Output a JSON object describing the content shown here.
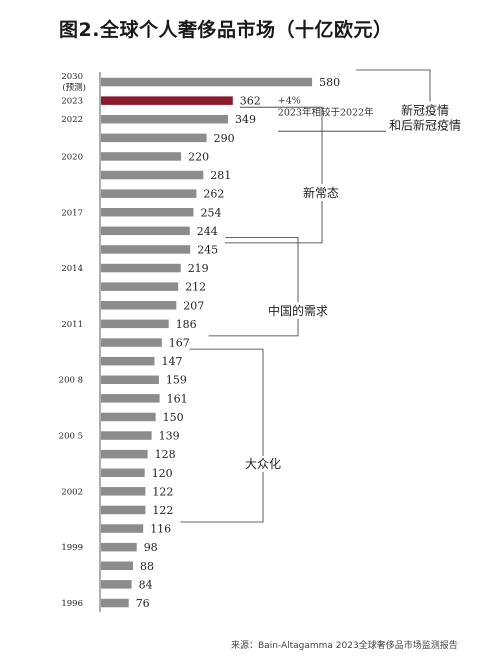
{
  "title": "图2.全球个人奢侈品市场（十亿欧元）",
  "source": "来源：Bain-Altagamma 2023全球奢侈品市场监测报告",
  "colors": {
    "bar": "#8c8c8c",
    "highlight": "#8b1a2b"
  },
  "chart_data": {
    "type": "bar",
    "orientation": "horizontal",
    "title": "图2.全球个人奢侈品市场（十亿欧元）",
    "unit": "十亿欧元",
    "bars": [
      {
        "value": 580,
        "year": "2030",
        "year_sub": "(预测)"
      },
      {
        "value": 362,
        "year": "2023",
        "highlight": true
      },
      {
        "value": 349,
        "year": "2022"
      },
      {
        "value": 290
      },
      {
        "value": 220,
        "year": "2020"
      },
      {
        "value": 281
      },
      {
        "value": 262
      },
      {
        "value": 254,
        "year": "2017"
      },
      {
        "value": 244
      },
      {
        "value": 245
      },
      {
        "value": 219,
        "year": "2014"
      },
      {
        "value": 212
      },
      {
        "value": 207
      },
      {
        "value": 186,
        "year": "2011"
      },
      {
        "value": 167
      },
      {
        "value": 147
      },
      {
        "value": 159,
        "year": "200 8"
      },
      {
        "value": 161
      },
      {
        "value": 150
      },
      {
        "value": 139,
        "year": "200 5"
      },
      {
        "value": 128
      },
      {
        "value": 120
      },
      {
        "value": 122,
        "year": "2002"
      },
      {
        "value": 122
      },
      {
        "value": 116
      },
      {
        "value": 98,
        "year": "1999"
      },
      {
        "value": 88
      },
      {
        "value": 84
      },
      {
        "value": 76,
        "year": "1996"
      }
    ],
    "groups": [
      {
        "label_lines": [
          "新冠疫情",
          "和后新冠疫情"
        ],
        "from": 0,
        "to": 2
      },
      {
        "label_lines": [
          "新常态"
        ],
        "from": 2,
        "to": 8
      },
      {
        "label_lines": [
          "中国的需求"
        ],
        "from": 9,
        "to": 13
      },
      {
        "label_lines": [
          "大众化"
        ],
        "from": 15,
        "to": 23
      }
    ],
    "annotation": {
      "change": "+4%",
      "note": "2023年相较于2022年"
    }
  }
}
